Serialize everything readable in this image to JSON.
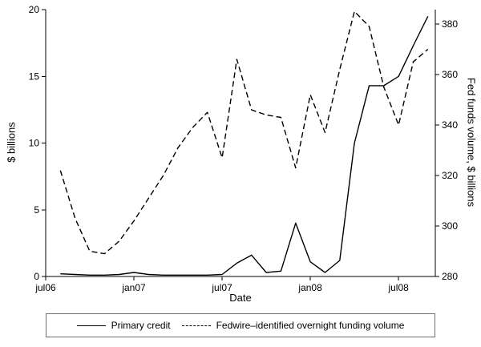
{
  "chart_data": {
    "type": "line",
    "title": "",
    "xlabel": "Date",
    "ylabel_left": "$ billions",
    "ylabel_right": "Fed funds volume, $ billions",
    "grid": false,
    "legend_position": "bottom",
    "x_tick_labels": [
      "jul06",
      "jan07",
      "jul07",
      "jan08",
      "jul08"
    ],
    "x_tick_month_index": [
      0,
      6,
      12,
      18,
      24
    ],
    "x_months": [
      "aug06",
      "sep06",
      "oct06",
      "nov06",
      "dec06",
      "jan07",
      "feb07",
      "mar07",
      "apr07",
      "may07",
      "jun07",
      "jul07",
      "aug07",
      "sep07",
      "oct07",
      "nov07",
      "dec07",
      "jan08",
      "feb08",
      "mar08",
      "apr08",
      "may08",
      "jun08",
      "jul08",
      "aug08",
      "sep08"
    ],
    "x_month_start_index": 1,
    "left_axis": {
      "ticks": [
        0,
        5,
        10,
        15,
        20
      ],
      "range": [
        0,
        20
      ]
    },
    "right_axis": {
      "ticks": [
        280,
        300,
        320,
        340,
        360,
        380
      ],
      "range": [
        280,
        385.7
      ]
    },
    "series": [
      {
        "name": "Primary credit",
        "axis": "left",
        "style": "solid",
        "color": "#000000",
        "values": [
          0.2,
          0.15,
          0.1,
          0.1,
          0.15,
          0.3,
          0.15,
          0.1,
          0.1,
          0.1,
          0.1,
          0.15,
          1.0,
          1.6,
          0.3,
          0.4,
          4.0,
          1.1,
          0.3,
          1.2,
          10.0,
          14.3,
          14.3,
          15.0,
          17.3,
          19.5
        ]
      },
      {
        "name": "Fedwire–identified overnight funding volume",
        "axis": "right",
        "style": "dashed",
        "color": "#000000",
        "values": [
          322,
          303,
          290,
          289,
          294,
          302,
          311,
          320,
          331,
          339,
          345,
          327,
          366,
          346,
          344,
          343,
          323,
          352,
          337,
          362,
          385,
          379,
          355,
          340,
          365,
          370
        ]
      }
    ]
  }
}
